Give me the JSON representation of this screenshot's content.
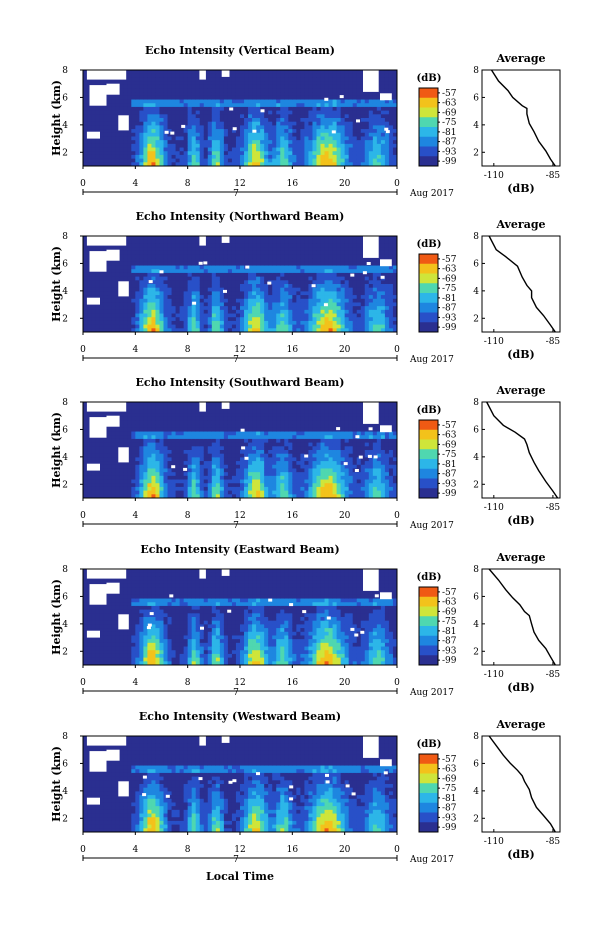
{
  "x_label": "Local Time",
  "colorbar": {
    "unit": "(dB)",
    "ticks": [
      -57,
      -63,
      -69,
      -75,
      -81,
      -87,
      -93,
      -99
    ],
    "colors": [
      "#f05a14",
      "#f3c21b",
      "#cfe53a",
      "#4fd7b0",
      "#2cb6e8",
      "#1e86e0",
      "#2850c8",
      "#2a2f90"
    ]
  },
  "colors": {
    "masked": "#ffffff",
    "line": "#000000"
  },
  "chart_data": [
    {
      "type": "heatmap",
      "title": "Echo Intensity (Vertical Beam)",
      "ylabel": "Height (km)",
      "y_ticks": [
        "2",
        "4",
        "6",
        "8"
      ],
      "ylim": [
        1,
        8
      ],
      "x_ticks": [
        "0",
        "4",
        "8",
        "12",
        "16",
        "20",
        "0"
      ],
      "xlim": [
        0,
        24
      ],
      "date_marker": "7",
      "date_label": "Aug 2017",
      "cbar_ticks": [
        "-57",
        "-63",
        "-69",
        "-75",
        "-81",
        "-87",
        "-93",
        "-99"
      ],
      "profile": {
        "title": "Average",
        "x_ticks": [
          "-110",
          "-85"
        ],
        "xlabel": "(dB)",
        "y_ticks": [
          "2",
          "4",
          "6",
          "8"
        ],
        "xlim": [
          -115,
          -82
        ],
        "ylim": [
          1,
          8
        ],
        "points": [
          [
            -111,
            8
          ],
          [
            -108,
            7.2
          ],
          [
            -104,
            6.5
          ],
          [
            -102,
            6
          ],
          [
            -98,
            5.4
          ],
          [
            -96,
            5.2
          ],
          [
            -96,
            4.8
          ],
          [
            -95,
            4.1
          ],
          [
            -93,
            3.5
          ],
          [
            -91,
            2.8
          ],
          [
            -88,
            2.1
          ],
          [
            -86,
            1.5
          ],
          [
            -84,
            1
          ]
        ]
      }
    },
    {
      "type": "heatmap",
      "title": "Echo Intensity (Northward Beam)",
      "ylabel": "Height (km)",
      "y_ticks": [
        "2",
        "4",
        "6",
        "8"
      ],
      "ylim": [
        1,
        8
      ],
      "x_ticks": [
        "0",
        "4",
        "8",
        "12",
        "16",
        "20",
        "0"
      ],
      "xlim": [
        0,
        24
      ],
      "date_marker": "7",
      "date_label": "Aug 2017",
      "cbar_ticks": [
        "-57",
        "-63",
        "-69",
        "-75",
        "-81",
        "-87",
        "-93",
        "-99"
      ],
      "profile": {
        "title": "Average",
        "x_ticks": [
          "-110",
          "-85"
        ],
        "xlabel": "(dB)",
        "y_ticks": [
          "2",
          "4",
          "6",
          "8"
        ],
        "xlim": [
          -115,
          -82
        ],
        "ylim": [
          1,
          8
        ],
        "points": [
          [
            -112,
            8
          ],
          [
            -109,
            7
          ],
          [
            -105,
            6.5
          ],
          [
            -100,
            5.8
          ],
          [
            -98,
            5
          ],
          [
            -96,
            4.4
          ],
          [
            -94,
            4
          ],
          [
            -94,
            3.5
          ],
          [
            -92,
            2.8
          ],
          [
            -89,
            2.2
          ],
          [
            -86,
            1.5
          ],
          [
            -84,
            1
          ]
        ]
      }
    },
    {
      "type": "heatmap",
      "title": "Echo Intensity (Southward Beam)",
      "ylabel": "Height (km)",
      "y_ticks": [
        "2",
        "4",
        "6",
        "8"
      ],
      "ylim": [
        1,
        8
      ],
      "x_ticks": [
        "0",
        "4",
        "8",
        "12",
        "16",
        "20",
        "0"
      ],
      "xlim": [
        0,
        24
      ],
      "date_marker": "7",
      "date_label": "Aug 2017",
      "cbar_ticks": [
        "-57",
        "-63",
        "-69",
        "-75",
        "-81",
        "-87",
        "-93",
        "-99"
      ],
      "profile": {
        "title": "Average",
        "x_ticks": [
          "-110",
          "-85"
        ],
        "xlabel": "(dB)",
        "y_ticks": [
          "2",
          "4",
          "6",
          "8"
        ],
        "xlim": [
          -115,
          -82
        ],
        "ylim": [
          1,
          8
        ],
        "points": [
          [
            -113,
            8
          ],
          [
            -110,
            7
          ],
          [
            -106,
            6.3
          ],
          [
            -101,
            5.8
          ],
          [
            -97,
            5.3
          ],
          [
            -96,
            4.9
          ],
          [
            -95,
            4.3
          ],
          [
            -93,
            3.6
          ],
          [
            -91,
            3
          ],
          [
            -88,
            2.2
          ],
          [
            -85,
            1.5
          ],
          [
            -83,
            1
          ]
        ]
      }
    },
    {
      "type": "heatmap",
      "title": "Echo Intensity (Eastward Beam)",
      "ylabel": "Height (km)",
      "y_ticks": [
        "2",
        "4",
        "6",
        "8"
      ],
      "ylim": [
        1,
        8
      ],
      "x_ticks": [
        "0",
        "4",
        "8",
        "12",
        "16",
        "20",
        "0"
      ],
      "xlim": [
        0,
        24
      ],
      "date_marker": "7",
      "date_label": "Aug 2017",
      "cbar_ticks": [
        "-57",
        "-63",
        "-69",
        "-75",
        "-81",
        "-87",
        "-93",
        "-99"
      ],
      "profile": {
        "title": "Average",
        "x_ticks": [
          "-110",
          "-85"
        ],
        "xlabel": "(dB)",
        "y_ticks": [
          "2",
          "4",
          "6",
          "8"
        ],
        "xlim": [
          -115,
          -82
        ],
        "ylim": [
          1,
          8
        ],
        "points": [
          [
            -112,
            8
          ],
          [
            -108,
            7.2
          ],
          [
            -105,
            6.5
          ],
          [
            -102,
            5.9
          ],
          [
            -99,
            5.4
          ],
          [
            -97,
            4.9
          ],
          [
            -95,
            4.6
          ],
          [
            -94,
            4
          ],
          [
            -93,
            3.4
          ],
          [
            -91,
            2.8
          ],
          [
            -88,
            2.2
          ],
          [
            -86,
            1.6
          ],
          [
            -84,
            1
          ]
        ]
      }
    },
    {
      "type": "heatmap",
      "title": "Echo Intensity (Westward Beam)",
      "ylabel": "Height (km)",
      "y_ticks": [
        "2",
        "4",
        "6",
        "8"
      ],
      "ylim": [
        1,
        8
      ],
      "x_ticks": [
        "0",
        "4",
        "8",
        "12",
        "16",
        "20",
        "0"
      ],
      "xlim": [
        0,
        24
      ],
      "date_marker": "7",
      "date_label": "Aug 2017",
      "cbar_ticks": [
        "-57",
        "-63",
        "-69",
        "-75",
        "-81",
        "-87",
        "-93",
        "-99"
      ],
      "profile": {
        "title": "Average",
        "x_ticks": [
          "-110",
          "-85"
        ],
        "xlabel": "(dB)",
        "y_ticks": [
          "2",
          "4",
          "6",
          "8"
        ],
        "xlim": [
          -115,
          -82
        ],
        "ylim": [
          1,
          8
        ],
        "points": [
          [
            -112,
            8
          ],
          [
            -109,
            7.3
          ],
          [
            -106,
            6.6
          ],
          [
            -103,
            6
          ],
          [
            -100,
            5.5
          ],
          [
            -98,
            5.1
          ],
          [
            -97,
            4.7
          ],
          [
            -95,
            4.1
          ],
          [
            -94,
            3.5
          ],
          [
            -92,
            2.8
          ],
          [
            -89,
            2.2
          ],
          [
            -86,
            1.6
          ],
          [
            -84,
            1
          ]
        ]
      }
    }
  ]
}
